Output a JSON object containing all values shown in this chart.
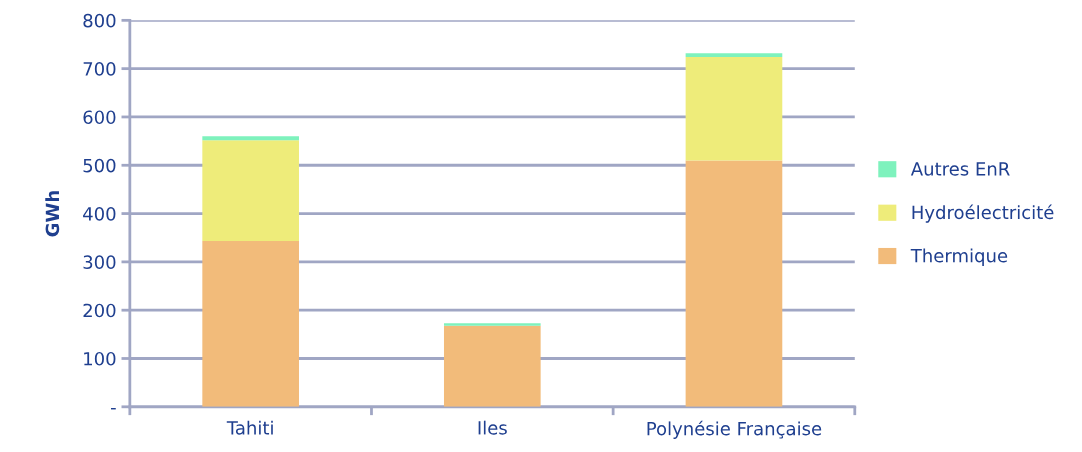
{
  "chart_data": {
    "type": "bar",
    "stacked": true,
    "ylabel": "GWh",
    "categories": [
      "Tahiti",
      "Iles",
      "Polynésie Française"
    ],
    "series": [
      {
        "name": "Thermique",
        "color": "#f2bb7a",
        "values": [
          343,
          168,
          510
        ]
      },
      {
        "name": "Hydroélectricité",
        "color": "#eeec7a",
        "values": [
          209,
          0,
          214
        ]
      },
      {
        "name": "Autres EnR",
        "color": "#7ef2bd",
        "values": [
          8,
          5,
          8
        ]
      }
    ],
    "ylim": [
      0,
      800
    ],
    "yticks": [
      {
        "value": 0,
        "label": "-"
      },
      100,
      200,
      300,
      400,
      500,
      600,
      700,
      800
    ],
    "grid": "y",
    "legend": "right"
  }
}
